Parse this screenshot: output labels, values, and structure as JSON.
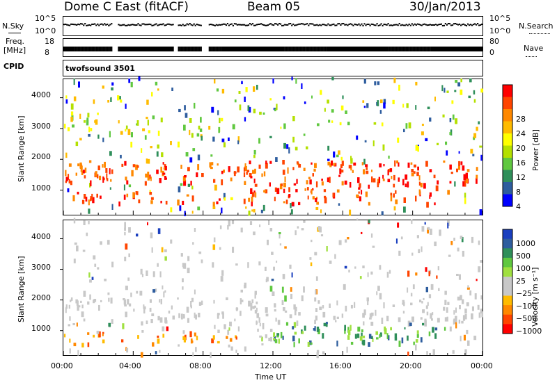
{
  "header": {
    "station": "Dome C East (fitACF)",
    "beam": "Beam 05",
    "date": "30/Jan/2013"
  },
  "nsky_panel": {
    "left_label": "N.Sky",
    "right_label": "N.Search",
    "left_ticks": [
      "10^5",
      "10^0"
    ],
    "right_ticks": [
      "10^5",
      "10^0"
    ]
  },
  "freq_panel": {
    "left_label_1": "Freq.",
    "left_label_2": "[MHz]",
    "right_label": "Nave",
    "left_ticks": [
      "18",
      "8"
    ],
    "right_ticks": [
      "80",
      "0"
    ]
  },
  "cpid_panel": {
    "label": "CPID",
    "program": "twofsound 3501"
  },
  "chart_data": [
    {
      "type": "heatmap",
      "panel": "power",
      "ylabel": "Slant Range [km]",
      "ylim": [
        200,
        4600
      ],
      "y_ticks": [
        "1000",
        "2000",
        "3000",
        "4000"
      ],
      "colorbar_label": "Power [dB]",
      "colorbar_ticks": [
        "28",
        "24",
        "20",
        "16",
        "12",
        "8",
        "4"
      ],
      "colors": [
        "#ff0000",
        "#ff4400",
        "#ff8800",
        "#ffbb00",
        "#ffff00",
        "#b4e000",
        "#60c840",
        "#2f8f5a",
        "#2e5d9e",
        "#0000ff"
      ],
      "data_gaps_ut": [
        [
          2.8,
          3.05
        ],
        [
          6.25,
          6.5
        ],
        [
          7.9,
          8.3
        ]
      ],
      "echo_bands": [
        {
          "from_ut": 0,
          "to_ut": 24,
          "range_km": [
            1200,
            1900
          ],
          "level": "high"
        },
        {
          "from_ut": 0,
          "to_ut": 9,
          "range_km": [
            500,
            900
          ],
          "level": "high"
        },
        {
          "from_ut": 10,
          "to_ut": 22,
          "range_km": [
            500,
            1300
          ],
          "level": "high"
        },
        {
          "from_ut": 0,
          "to_ut": 9,
          "range_km": [
            2800,
            3300
          ],
          "level": "medium"
        }
      ]
    },
    {
      "type": "heatmap",
      "panel": "velocity",
      "xlabel": "Time UT",
      "ylabel": "Slant Range [km]",
      "ylim": [
        200,
        4600
      ],
      "y_ticks": [
        "1000",
        "2000",
        "3000",
        "4000"
      ],
      "x_ticks": [
        "00:00",
        "04:00",
        "08:00",
        "12:00",
        "16:00",
        "20:00",
        "00:00"
      ],
      "xlim": [
        0,
        24
      ],
      "colorbar_label": "Velocity [m s⁻¹]",
      "colorbar_ticks": [
        "1000",
        "500",
        "100",
        "25",
        "−25",
        "−100",
        "−500",
        "−1000"
      ],
      "colors": [
        "#1a3fbf",
        "#2e5d9e",
        "#2f8f5a",
        "#60c840",
        "#a0e040",
        "#c8c8c8",
        "#c8c8c8",
        "#ffbb00",
        "#ff8800",
        "#ff4400",
        "#ff0000"
      ],
      "echo_bands": [
        {
          "from_ut": 0,
          "to_ut": 24,
          "range_km": [
            1200,
            2000
          ],
          "level": "near-zero"
        },
        {
          "from_ut": 0,
          "to_ut": 10,
          "range_km": [
            500,
            900
          ],
          "level": "negative"
        },
        {
          "from_ut": 12,
          "to_ut": 22,
          "range_km": [
            500,
            1200
          ],
          "level": "positive"
        }
      ]
    }
  ]
}
